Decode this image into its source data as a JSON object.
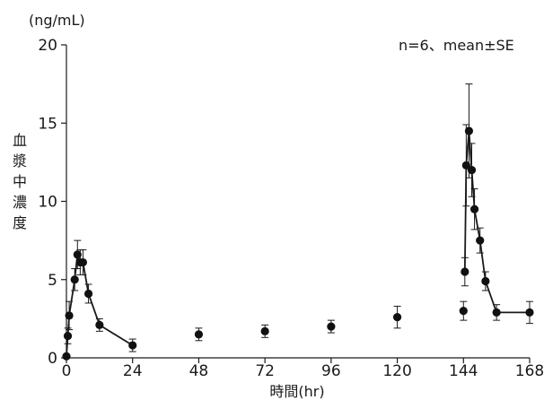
{
  "chart_data": {
    "type": "line",
    "unit_label": "(ng/mL)",
    "ylabel": "血漿中濃度",
    "xlabel": "時間(hr)",
    "annotation": "n=6、mean±SE",
    "xlim": [
      0,
      168
    ],
    "ylim": [
      0,
      20
    ],
    "x_ticks": [
      0,
      24,
      48,
      72,
      96,
      120,
      144,
      168
    ],
    "y_ticks": [
      0,
      5,
      10,
      15,
      20
    ],
    "grid": false,
    "series": [
      {
        "x": [
          0,
          0.5,
          1,
          3,
          4,
          5,
          6,
          8,
          12,
          24,
          48,
          72,
          96,
          120,
          144,
          144.5,
          145,
          146,
          147,
          148,
          150,
          152,
          156,
          168
        ],
        "y": [
          0.1,
          1.4,
          2.7,
          5.0,
          6.6,
          6.1,
          6.1,
          4.1,
          2.1,
          0.8,
          1.5,
          1.7,
          2.0,
          2.6,
          3.0,
          5.5,
          12.3,
          14.5,
          12.0,
          9.5,
          7.5,
          4.9,
          2.9,
          2.9
        ],
        "err": [
          0.1,
          0.5,
          0.9,
          0.7,
          0.9,
          0.8,
          0.8,
          0.6,
          0.4,
          0.4,
          0.4,
          0.4,
          0.4,
          0.7,
          0.6,
          0.9,
          2.6,
          3.0,
          1.7,
          1.3,
          0.8,
          0.6,
          0.5,
          0.7
        ],
        "connected": [
          true,
          true,
          true,
          true,
          true,
          true,
          true,
          true,
          true,
          true,
          false,
          false,
          false,
          false,
          false,
          true,
          true,
          true,
          true,
          true,
          true,
          true,
          true,
          true
        ]
      }
    ]
  }
}
